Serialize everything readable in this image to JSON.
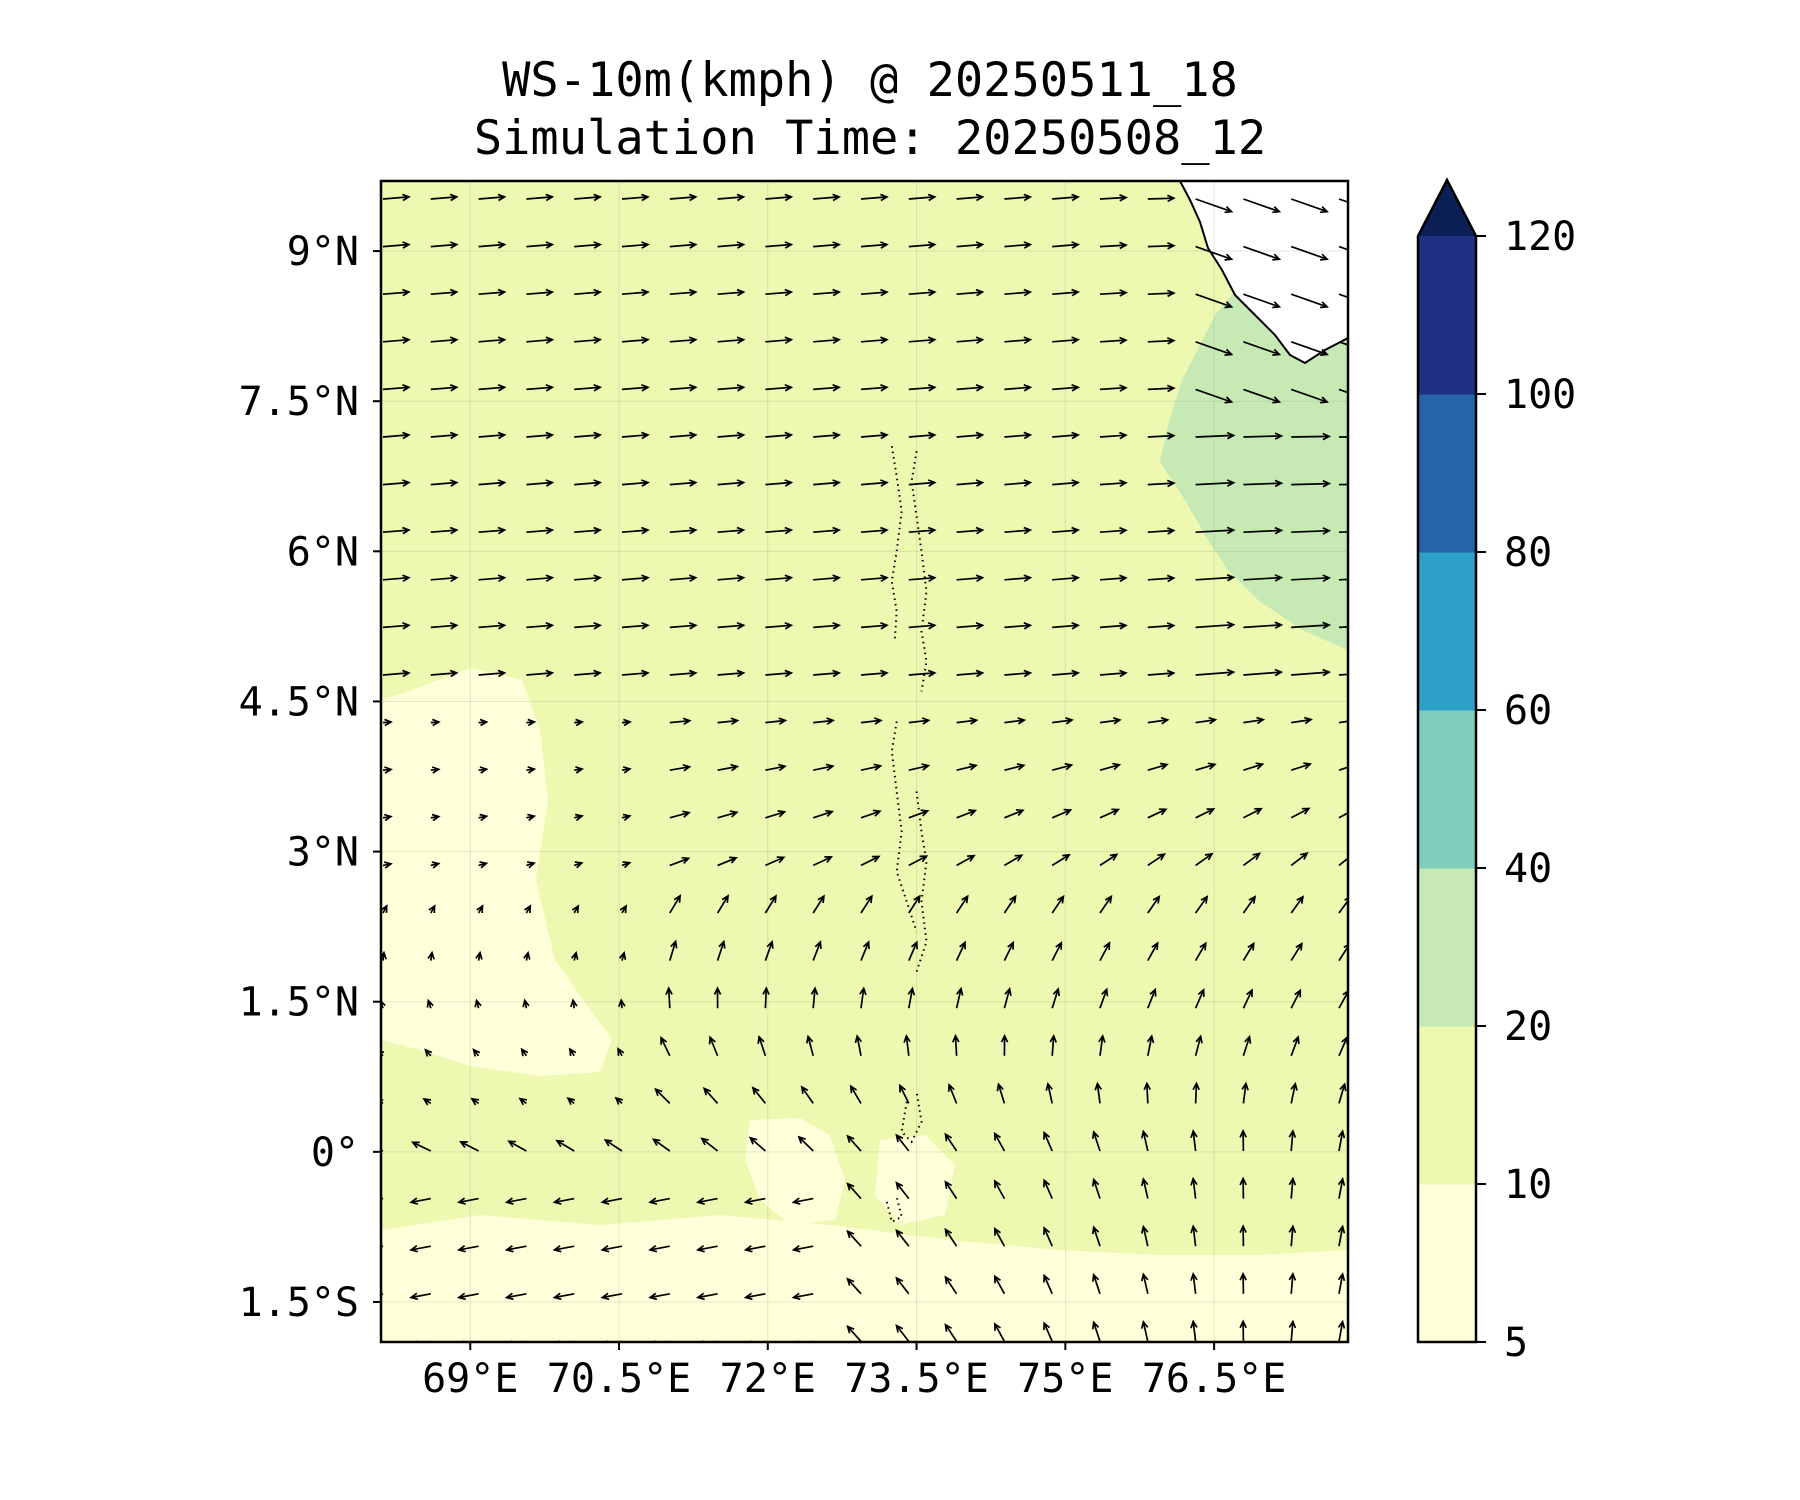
{
  "title": {
    "line1": "WS-10m(kmph) @ 20250511_18",
    "line2": "Simulation Time: 20250508_12"
  },
  "colors": {
    "class_5_10": "#ffffd9",
    "class_10_20": "#edf8b1",
    "class_20_40": "#c7e9b4",
    "class_40_60": "#7fcdbb",
    "class_60_80": "#2ca0c8",
    "class_80_100": "#2563aa",
    "class_100_120": "#1f2f82",
    "over_120": "#0b1f54",
    "land": "#ffffff",
    "coastline": "#000000",
    "arrow": "#000000"
  },
  "chart_data": {
    "type": "filled-contour-with-wind-vectors",
    "map_extent": {
      "lon": [
        68.1,
        77.85
      ],
      "lat": [
        -1.9,
        9.7
      ]
    },
    "x_ticks": [
      {
        "value": 69.0,
        "label": "69°E"
      },
      {
        "value": 70.5,
        "label": "70.5°E"
      },
      {
        "value": 72.0,
        "label": "72°E"
      },
      {
        "value": 73.5,
        "label": "73.5°E"
      },
      {
        "value": 75.0,
        "label": "75°E"
      },
      {
        "value": 76.5,
        "label": "76.5°E"
      }
    ],
    "y_ticks": [
      {
        "value": 9.0,
        "label": "9°N"
      },
      {
        "value": 7.5,
        "label": "7.5°N"
      },
      {
        "value": 6.0,
        "label": "6°N"
      },
      {
        "value": 4.5,
        "label": "4.5°N"
      },
      {
        "value": 3.0,
        "label": "3°N"
      },
      {
        "value": 1.5,
        "label": "1.5°N"
      },
      {
        "value": 0.0,
        "label": "0°"
      },
      {
        "value": -1.5,
        "label": "1.5°S"
      }
    ],
    "colorbar": {
      "levels": [
        5,
        10,
        20,
        40,
        60,
        80,
        100,
        120
      ],
      "labels": [
        "5",
        "10",
        "20",
        "40",
        "60",
        "80",
        "100",
        "120"
      ],
      "extend": "max"
    },
    "speed_regions": [
      {
        "level_kmph": 20,
        "area": "coastal band off south-west India, about 76.2–77.85°E and 5.8–9.7°N"
      },
      {
        "level_kmph": 10,
        "area": "most of the domain"
      },
      {
        "level_kmph": 5,
        "area": "south-west Arabian Sea near 68.1–70.4°E, 0.6–5.0°N and patches south of the Maldives"
      }
    ],
    "wind_field": {
      "north_of_4.5N": "westerly, turning west-north-westerly near the coast",
      "south_of_1.5N": "south-easterly in the west, southerly in the east"
    }
  }
}
